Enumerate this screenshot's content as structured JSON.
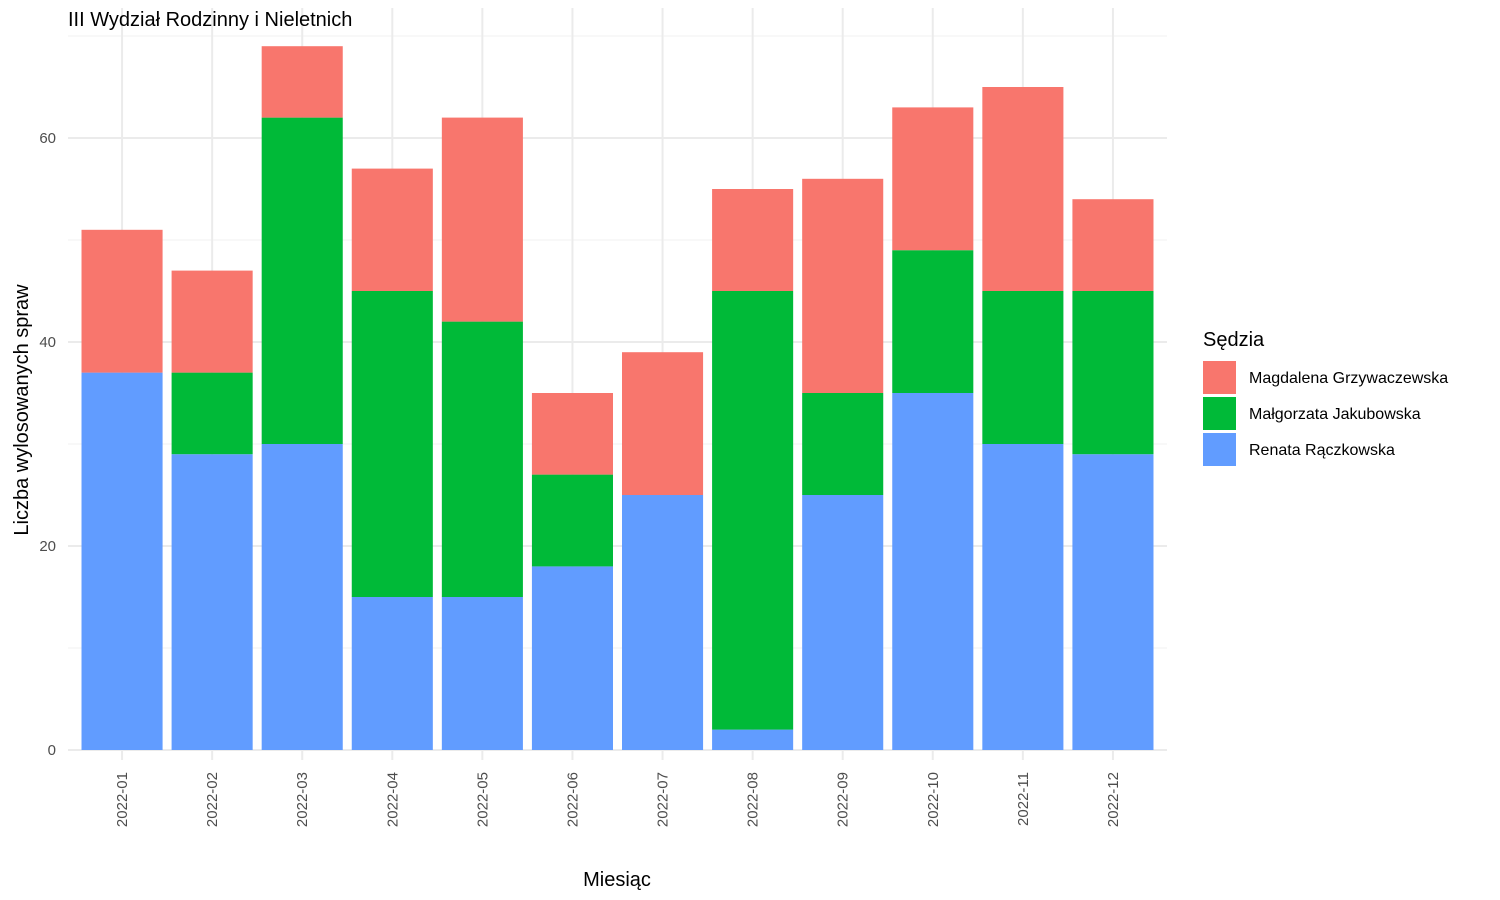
{
  "chart_data": {
    "type": "bar",
    "stacked": true,
    "title": "III Wydział Rodzinny i Nieletnich",
    "xlabel": "Miesiąc",
    "ylabel": "Liczba wylosowanych spraw",
    "ylim": [
      0,
      70
    ],
    "yticks": [
      0,
      20,
      40,
      60
    ],
    "grid": true,
    "legend_title": "Sędzia",
    "legend_position": "right",
    "categories": [
      "2022-01",
      "2022-02",
      "2022-03",
      "2022-04",
      "2022-05",
      "2022-06",
      "2022-07",
      "2022-08",
      "2022-09",
      "2022-10",
      "2022-11",
      "2022-12"
    ],
    "series": [
      {
        "name": "Renata Rączkowska",
        "color": "#619CFF",
        "values": [
          37,
          29,
          30,
          15,
          15,
          18,
          25,
          2,
          25,
          35,
          30,
          29
        ]
      },
      {
        "name": "Małgorzata Jakubowska",
        "color": "#00BA38",
        "values": [
          0,
          8,
          32,
          30,
          27,
          9,
          0,
          43,
          10,
          14,
          15,
          16
        ]
      },
      {
        "name": "Magdalena Grzywaczewska",
        "color": "#F8766D",
        "values": [
          14,
          10,
          7,
          12,
          20,
          8,
          14,
          10,
          21,
          14,
          20,
          9
        ]
      }
    ],
    "legend_order": [
      "Magdalena Grzywaczewska",
      "Małgorzata Jakubowska",
      "Renata Rączkowska"
    ]
  }
}
